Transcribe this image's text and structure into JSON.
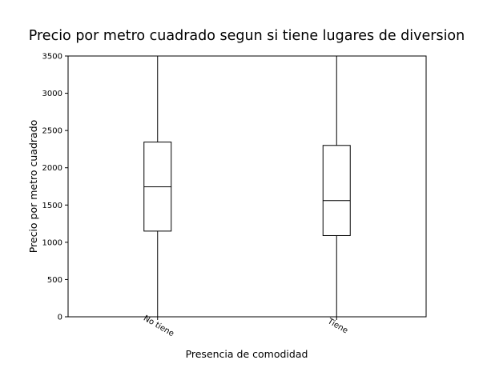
{
  "chart_data": {
    "type": "box",
    "title": "Precio por metro cuadrado segun si tiene lugares de diversion",
    "xlabel": "Presencia de comodidad",
    "ylabel": "Precio por metro cuadrado",
    "ylim": [
      0,
      3500
    ],
    "yticks": [
      "0",
      "500",
      "1000",
      "1500",
      "2000",
      "2500",
      "3000",
      "3500"
    ],
    "categories": [
      "No tiene",
      "Tiene"
    ],
    "boxes": [
      {
        "category": "No tiene",
        "whisker_low": 0,
        "q1": 1150,
        "median": 1745,
        "q3": 2345,
        "whisker_high": 3500
      },
      {
        "category": "Tiene",
        "whisker_low": 0,
        "q1": 1090,
        "median": 1560,
        "q3": 2300,
        "whisker_high": 3500
      }
    ],
    "grid": false,
    "legend": "none",
    "colors": {
      "box_edge": "#000000",
      "background": "#ffffff"
    }
  }
}
